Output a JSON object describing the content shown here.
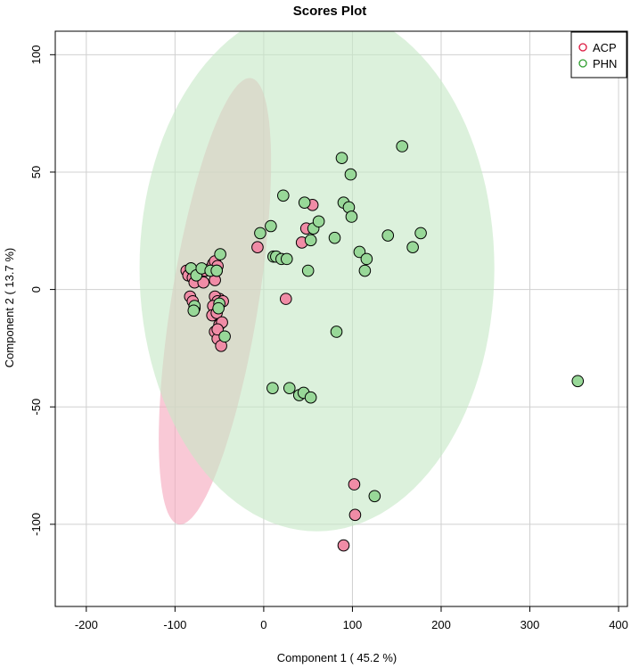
{
  "chart_data": {
    "type": "scatter",
    "title": "Scores Plot",
    "xlabel": "Component 1 ( 45.2 %)",
    "ylabel": "Component 2 ( 13.7 %)",
    "xlim": [
      -235,
      410
    ],
    "ylim": [
      -135,
      110
    ],
    "xticks": [
      -200,
      -100,
      0,
      100,
      200,
      300,
      400
    ],
    "yticks": [
      -100,
      -50,
      0,
      50,
      100
    ],
    "grid": true,
    "legend": {
      "position": "top-right",
      "entries": [
        "ACP",
        "PHN"
      ]
    },
    "series": [
      {
        "name": "ACP",
        "color": "#dc143c",
        "fill": "#f08ca6",
        "ellipse": {
          "cx": -55,
          "cy": -5,
          "rx": 105,
          "ry": 45,
          "angle_deg": 62,
          "fill": "#f5a8bd"
        },
        "points": [
          [
            -87,
            8
          ],
          [
            -85,
            6
          ],
          [
            -82,
            9
          ],
          [
            -80,
            5
          ],
          [
            -78,
            3
          ],
          [
            -83,
            -3
          ],
          [
            -80,
            -5
          ],
          [
            -78,
            -8
          ],
          [
            -70,
            7
          ],
          [
            -68,
            3
          ],
          [
            -66,
            8
          ],
          [
            -60,
            9
          ],
          [
            -57,
            11
          ],
          [
            -55,
            12
          ],
          [
            -52,
            10
          ],
          [
            -55,
            4
          ],
          [
            -53,
            8
          ],
          [
            -50,
            -4
          ],
          [
            -55,
            -3
          ],
          [
            -52,
            -5
          ],
          [
            -57,
            -7
          ],
          [
            -58,
            -11
          ],
          [
            -53,
            -10
          ],
          [
            -50,
            -15
          ],
          [
            -47,
            -14
          ],
          [
            -55,
            -18
          ],
          [
            -52,
            -21
          ],
          [
            -48,
            -24
          ],
          [
            -46,
            -5
          ],
          [
            -52,
            -17
          ],
          [
            -7,
            18
          ],
          [
            25,
            -4
          ],
          [
            43,
            20
          ],
          [
            48,
            26
          ],
          [
            55,
            36
          ],
          [
            102,
            -83
          ],
          [
            103,
            -96
          ],
          [
            90,
            -109
          ]
        ]
      },
      {
        "name": "PHN",
        "color": "#2e9e2e",
        "fill": "#98d898",
        "ellipse": {
          "cx": 60,
          "cy": 9,
          "rx": 200,
          "ry": 112,
          "angle_deg": 0,
          "fill": "#c6e8c6"
        },
        "points": [
          [
            -82,
            9
          ],
          [
            -76,
            6
          ],
          [
            -78,
            -7
          ],
          [
            -79,
            -9
          ],
          [
            -70,
            9
          ],
          [
            -60,
            8
          ],
          [
            -53,
            8
          ],
          [
            -49,
            15
          ],
          [
            -50,
            -6
          ],
          [
            -51,
            -8
          ],
          [
            -44,
            -20
          ],
          [
            -4,
            24
          ],
          [
            8,
            27
          ],
          [
            11,
            14
          ],
          [
            14,
            14
          ],
          [
            20,
            13
          ],
          [
            26,
            13
          ],
          [
            22,
            40
          ],
          [
            46,
            37
          ],
          [
            50,
            8
          ],
          [
            53,
            21
          ],
          [
            56,
            26
          ],
          [
            62,
            29
          ],
          [
            80,
            22
          ],
          [
            82,
            -18
          ],
          [
            88,
            56
          ],
          [
            90,
            37
          ],
          [
            96,
            35
          ],
          [
            98,
            49
          ],
          [
            99,
            31
          ],
          [
            108,
            16
          ],
          [
            114,
            8
          ],
          [
            116,
            13
          ],
          [
            140,
            23
          ],
          [
            156,
            61
          ],
          [
            168,
            18
          ],
          [
            177,
            24
          ],
          [
            354,
            -39
          ],
          [
            10,
            -42
          ],
          [
            29,
            -42
          ],
          [
            40,
            -45
          ],
          [
            45,
            -44
          ],
          [
            53,
            -46
          ],
          [
            125,
            -88
          ]
        ]
      }
    ]
  }
}
